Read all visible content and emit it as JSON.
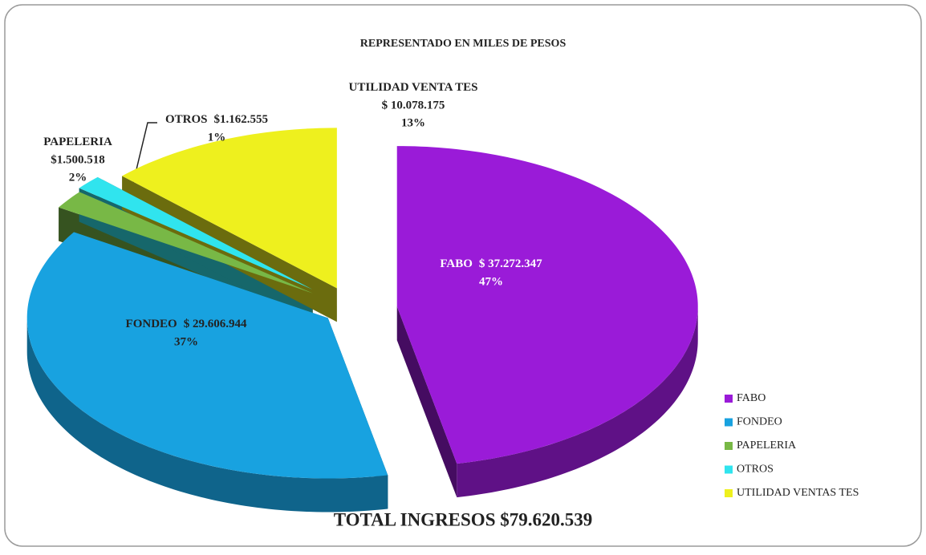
{
  "chart_data": {
    "type": "pie3d",
    "title": "REPRESENTADO EN MILES DE PESOS",
    "categories": [
      "FABO",
      "FONDEO",
      "PAPELERIA",
      "OTROS",
      "UTILIDAD VENTAS TES"
    ],
    "label_names": [
      "FABO",
      "FONDEO",
      "PAPELERIA",
      "OTROS",
      "UTILIDAD VENTA TES"
    ],
    "values": [
      37272347,
      29606944,
      1500518,
      1162555,
      10078175
    ],
    "value_labels": [
      "$ 37.272.347",
      "$ 29.606.944",
      "$1.500.518",
      "$1.162.555",
      "$ 10.078.175"
    ],
    "percents": [
      47,
      37,
      2,
      1,
      13
    ],
    "percent_labels": [
      "47%",
      "37%",
      "2%",
      "1%",
      "13%"
    ],
    "colors": [
      "#9a1bd8",
      "#18a2e0",
      "#78b846",
      "#30e4ee",
      "#eef01e"
    ],
    "legend": "right",
    "total": "TOTAL INGRESOS $79.620.539"
  }
}
